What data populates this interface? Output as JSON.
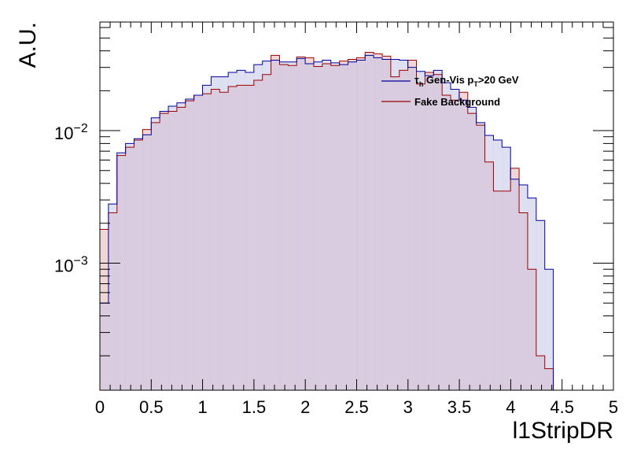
{
  "chart_data": {
    "type": "bar",
    "xlabel": "l1StripDR",
    "ylabel": "A.U.",
    "xlim": [
      0,
      5
    ],
    "ylim": [
      0.00011,
      0.066
    ],
    "log_y": true,
    "grid": false,
    "legend_position": "top-right",
    "bin_width": 0.0833,
    "x_ticks": [
      "0",
      "0.5",
      "1",
      "1.5",
      "2",
      "2.5",
      "3",
      "3.5",
      "4",
      "4.5",
      "5"
    ],
    "y_ticks": [
      {
        "value": 0.01,
        "base": "10",
        "exp": "−2"
      },
      {
        "value": 0.001,
        "base": "10",
        "exp": "−3"
      }
    ],
    "series": [
      {
        "name_parts": {
          "tau": "τ",
          "tau_sub": "h",
          "mid": " Gen-Vis p",
          "p_sub": "T",
          "tail": ">20 GeV"
        },
        "line_color": "#000099",
        "fill_color": "#c4c4e8",
        "values": [
          0.0005,
          0.0028,
          0.0068,
          0.008,
          0.0087,
          0.0093,
          0.0125,
          0.014,
          0.0153,
          0.0162,
          0.0173,
          0.0185,
          0.022,
          0.0255,
          0.0255,
          0.0275,
          0.0285,
          0.0275,
          0.0315,
          0.0335,
          0.034,
          0.033,
          0.033,
          0.035,
          0.032,
          0.033,
          0.034,
          0.0325,
          0.0315,
          0.033,
          0.034,
          0.037,
          0.0355,
          0.0345,
          0.0345,
          0.034,
          0.03,
          0.028,
          0.026,
          0.0285,
          0.023,
          0.0205,
          0.017,
          0.015,
          0.0115,
          0.0092,
          0.0085,
          0.0075,
          0.0043,
          0.0039,
          0.0031,
          0.0021,
          0.0009,
          0.0
        ]
      },
      {
        "name": "Fake Background",
        "line_color": "#990000",
        "fill_color": "#f0d2d2",
        "values": [
          0.0018,
          0.0024,
          0.0065,
          0.0075,
          0.0085,
          0.0102,
          0.0115,
          0.0135,
          0.014,
          0.015,
          0.0168,
          0.0185,
          0.019,
          0.0205,
          0.0195,
          0.0215,
          0.022,
          0.022,
          0.024,
          0.0265,
          0.037,
          0.0315,
          0.031,
          0.036,
          0.0355,
          0.0305,
          0.032,
          0.031,
          0.0335,
          0.0345,
          0.0355,
          0.039,
          0.038,
          0.0365,
          0.0255,
          0.0285,
          0.034,
          0.0225,
          0.0275,
          0.0265,
          0.0185,
          0.017,
          0.0195,
          0.0135,
          0.011,
          0.0058,
          0.0035,
          0.0035,
          0.0052,
          0.0024,
          0.0009,
          0.0002,
          0.00016,
          0.0
        ]
      }
    ]
  }
}
